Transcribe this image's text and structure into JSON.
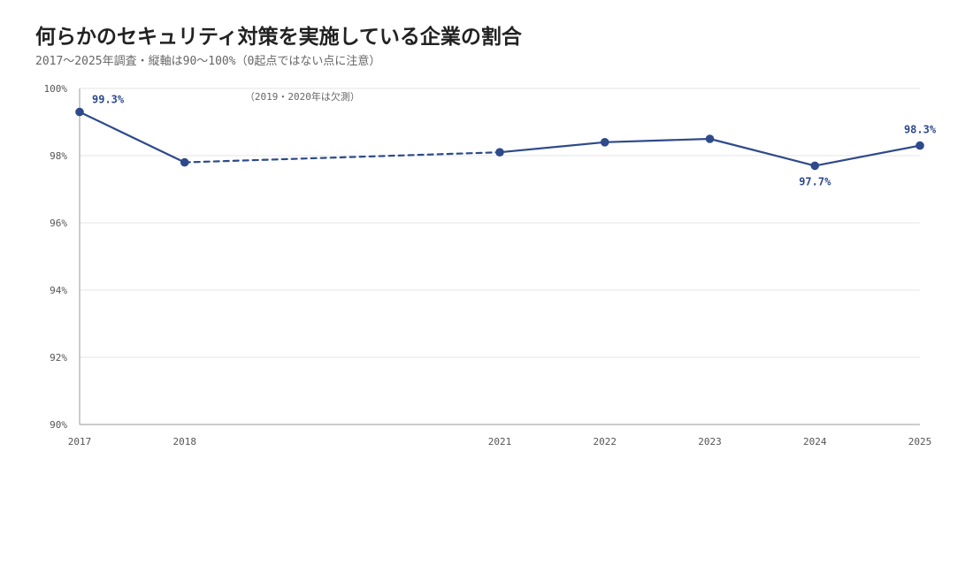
{
  "header": {
    "title": "何らかのセキュリティ対策を実施している企業の割合",
    "subtitle": "2017〜2025年調査・縦軸は90〜100%（0起点ではない点に注意）"
  },
  "colors": {
    "series": "#2e4a8b",
    "grid": "#e6e6e6",
    "axis": "#999999"
  },
  "chart_data": {
    "type": "line",
    "title": "何らかのセキュリティ対策を実施している企業の割合",
    "subtitle": "2017〜2025年調査・縦軸は90〜100%（0起点ではない点に注意）",
    "x": [
      2017,
      2018,
      2021,
      2022,
      2023,
      2024,
      2025
    ],
    "series": [
      {
        "values": [
          99.3,
          97.8,
          98.1,
          98.4,
          98.5,
          97.7,
          98.3
        ]
      }
    ],
    "xlim": [
      2017,
      2025
    ],
    "ylim": [
      90,
      100
    ],
    "yticks": [
      90,
      92,
      94,
      96,
      98,
      100
    ],
    "ytick_labels": [
      "90%",
      "92%",
      "94%",
      "96%",
      "98%",
      "100%"
    ],
    "xtick_labels": [
      "2017",
      "2018",
      "2021",
      "2022",
      "2023",
      "2024",
      "2025"
    ],
    "data_labels": [
      {
        "x": 2017,
        "text": "99.3%"
      },
      {
        "x": 2024,
        "text": "97.7%"
      },
      {
        "x": 2025,
        "text": "98.3%"
      }
    ],
    "gap": {
      "from": 2018,
      "to": 2021,
      "style": "dashed"
    },
    "annotations": [
      {
        "text": "（2019・2020年は欠測）"
      }
    ],
    "grid": true,
    "legend": "none"
  }
}
